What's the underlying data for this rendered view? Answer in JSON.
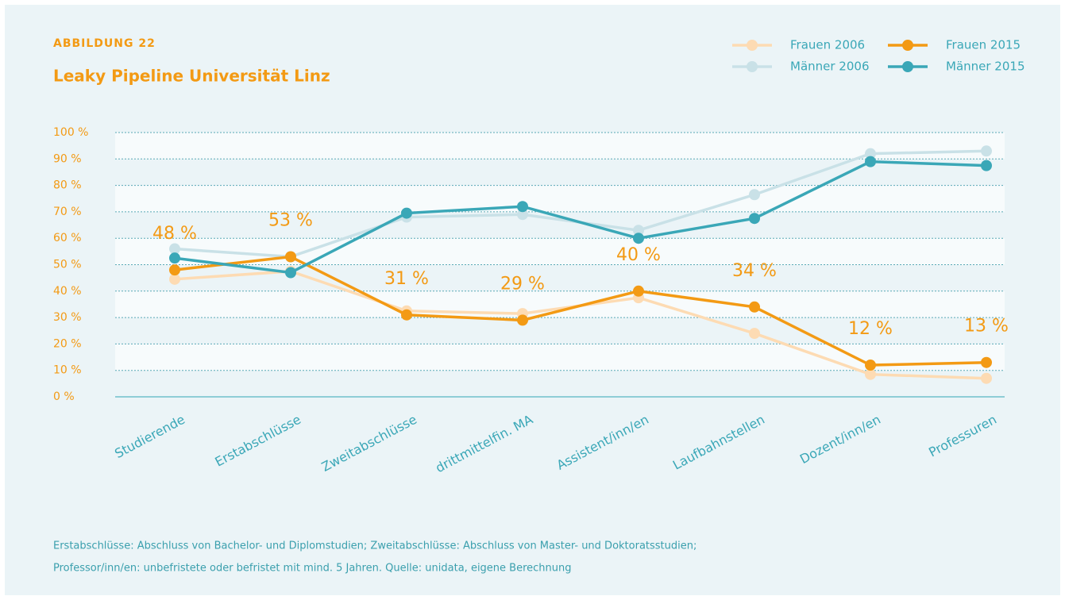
{
  "chart_data": {
    "type": "line",
    "label": "ABBILDUNG 22",
    "title": "Leaky Pipeline Universität Linz",
    "categories": [
      "Studierende",
      "Erstabschlüsse",
      "Zweitabschlüsse",
      "drittmittelfin. MA",
      "Assistent/inn/en",
      "Laufbahnstellen",
      "Dozent/inn/en",
      "Professuren"
    ],
    "series": [
      {
        "name": "Frauen 2006",
        "color": "#fddbb3",
        "values": [
          44.5,
          47.5,
          32.5,
          31.5,
          37.5,
          24,
          8.5,
          7
        ]
      },
      {
        "name": "Männer 2006",
        "color": "#c9e1e7",
        "values": [
          56,
          53,
          68,
          69,
          63,
          76.5,
          92,
          93
        ]
      },
      {
        "name": "Frauen 2015",
        "color": "#f39a14",
        "values": [
          48,
          53,
          31,
          29,
          40,
          34,
          12,
          13
        ],
        "value_labels": [
          "48 %",
          "53 %",
          "31 %",
          "29 %",
          "40 %",
          "34 %",
          "12 %",
          "13 %"
        ]
      },
      {
        "name": "Männer 2015",
        "color": "#3aa7b7",
        "values": [
          52.5,
          47,
          69.5,
          72,
          60,
          67.5,
          89,
          87.5
        ]
      }
    ],
    "ylim": [
      0,
      100
    ],
    "yticks": [
      {
        "value": 0,
        "label": "0 %"
      },
      {
        "value": 10,
        "label": "10 %"
      },
      {
        "value": 20,
        "label": "20 %"
      },
      {
        "value": 30,
        "label": "30 %"
      },
      {
        "value": 40,
        "label": "40 %"
      },
      {
        "value": 50,
        "label": "50 %"
      },
      {
        "value": 60,
        "label": "60 %"
      },
      {
        "value": 70,
        "label": "70 %"
      },
      {
        "value": 80,
        "label": "80 %"
      },
      {
        "value": 90,
        "label": "90 %"
      },
      {
        "value": 100,
        "label": "100 %"
      }
    ],
    "grid": true,
    "legend": "upper right",
    "footnote": [
      "Erstabschlüsse: Abschluss von Bachelor- und Diplomstudien; Zweitabschlüsse: Abschluss von Master- und Doktoratsstudien;",
      "Professor/inn/en: unbefristete oder befristet mit mind. 5 Jahren. Quelle: unidata, eigene Berechnung"
    ]
  }
}
